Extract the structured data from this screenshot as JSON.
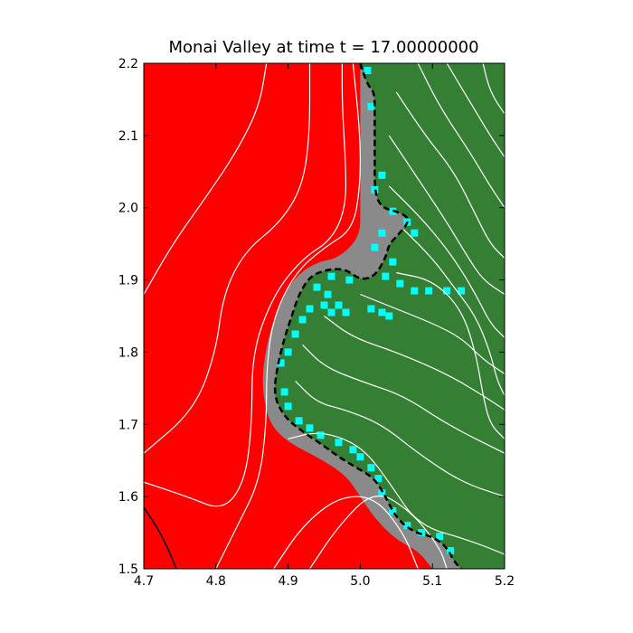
{
  "chart_data": {
    "type": "heatmap",
    "title": "Monai Valley at time t =     17.00000000",
    "xlabel": "",
    "ylabel": "",
    "xlim": [
      4.7,
      5.2
    ],
    "ylim": [
      1.5,
      2.2
    ],
    "x_ticks": [
      "4.7",
      "4.8",
      "4.9",
      "5.0",
      "5.1",
      "5.2"
    ],
    "y_ticks": [
      "1.5",
      "1.6",
      "1.7",
      "1.8",
      "1.9",
      "2.0",
      "2.1",
      "2.2"
    ],
    "grid": false,
    "colors": {
      "water": "#ff0000",
      "land": "#347f34",
      "shallow_land": "#4a8f2a",
      "wet_cells": "#00ffff",
      "shoreline_blend": "#8a8a8a",
      "contours": "#ffffff",
      "shoreline_line": "#000000"
    },
    "shoreline": [
      [
        5.0,
        2.2
      ],
      [
        5.01,
        2.17
      ],
      [
        5.02,
        2.16
      ],
      [
        5.02,
        2.12
      ],
      [
        5.02,
        2.07
      ],
      [
        5.02,
        2.02
      ],
      [
        5.03,
        2.0
      ],
      [
        5.05,
        1.995
      ],
      [
        5.07,
        1.985
      ],
      [
        5.055,
        1.965
      ],
      [
        5.04,
        1.95
      ],
      [
        5.035,
        1.93
      ],
      [
        5.02,
        1.905
      ],
      [
        5.0,
        1.9
      ],
      [
        4.98,
        1.915
      ],
      [
        4.955,
        1.915
      ],
      [
        4.93,
        1.905
      ],
      [
        4.915,
        1.88
      ],
      [
        4.905,
        1.85
      ],
      [
        4.895,
        1.82
      ],
      [
        4.885,
        1.78
      ],
      [
        4.88,
        1.74
      ],
      [
        4.895,
        1.71
      ],
      [
        4.92,
        1.69
      ],
      [
        4.95,
        1.67
      ],
      [
        4.97,
        1.655
      ],
      [
        4.995,
        1.64
      ],
      [
        5.02,
        1.625
      ],
      [
        5.035,
        1.6
      ],
      [
        5.05,
        1.57
      ],
      [
        5.075,
        1.55
      ],
      [
        5.1,
        1.545
      ],
      [
        5.12,
        1.53
      ],
      [
        5.13,
        1.51
      ],
      [
        5.14,
        1.5
      ]
    ],
    "land_boundary": [
      [
        5.0,
        2.2
      ],
      [
        5.0,
        2.15
      ],
      [
        5.0,
        2.07
      ],
      [
        5.0,
        2.0
      ],
      [
        5.0,
        1.96
      ],
      [
        4.97,
        1.93
      ],
      [
        4.94,
        1.925
      ],
      [
        4.91,
        1.905
      ],
      [
        4.89,
        1.87
      ],
      [
        4.875,
        1.83
      ],
      [
        4.865,
        1.78
      ],
      [
        4.865,
        1.74
      ],
      [
        4.875,
        1.7
      ],
      [
        4.9,
        1.675
      ],
      [
        4.94,
        1.655
      ],
      [
        4.98,
        1.63
      ],
      [
        5.0,
        1.6
      ],
      [
        5.02,
        1.57
      ],
      [
        5.05,
        1.54
      ],
      [
        5.08,
        1.525
      ],
      [
        5.1,
        1.5
      ]
    ],
    "wet_cells": [
      [
        5.01,
        2.19
      ],
      [
        5.015,
        2.14
      ],
      [
        5.03,
        2.045
      ],
      [
        5.02,
        2.025
      ],
      [
        5.045,
        1.995
      ],
      [
        5.065,
        1.98
      ],
      [
        5.075,
        1.965
      ],
      [
        5.03,
        1.965
      ],
      [
        5.02,
        1.945
      ],
      [
        5.045,
        1.925
      ],
      [
        5.035,
        1.905
      ],
      [
        5.055,
        1.895
      ],
      [
        5.075,
        1.885
      ],
      [
        5.095,
        1.885
      ],
      [
        5.12,
        1.885
      ],
      [
        5.14,
        1.885
      ],
      [
        4.985,
        1.9
      ],
      [
        4.96,
        1.905
      ],
      [
        4.94,
        1.89
      ],
      [
        4.955,
        1.88
      ],
      [
        4.95,
        1.865
      ],
      [
        4.97,
        1.865
      ],
      [
        4.98,
        1.855
      ],
      [
        4.96,
        1.855
      ],
      [
        4.93,
        1.86
      ],
      [
        4.92,
        1.845
      ],
      [
        4.91,
        1.825
      ],
      [
        4.9,
        1.8
      ],
      [
        4.89,
        1.785
      ],
      [
        4.895,
        1.745
      ],
      [
        4.9,
        1.725
      ],
      [
        4.915,
        1.705
      ],
      [
        4.93,
        1.695
      ],
      [
        4.945,
        1.685
      ],
      [
        4.97,
        1.675
      ],
      [
        4.99,
        1.665
      ],
      [
        5.0,
        1.655
      ],
      [
        5.015,
        1.64
      ],
      [
        5.025,
        1.625
      ],
      [
        5.03,
        1.605
      ],
      [
        5.045,
        1.58
      ],
      [
        5.065,
        1.56
      ],
      [
        5.085,
        1.55
      ],
      [
        5.11,
        1.545
      ],
      [
        5.125,
        1.525
      ],
      [
        5.03,
        1.855
      ],
      [
        5.04,
        1.85
      ],
      [
        5.015,
        1.86
      ]
    ],
    "contours": [
      [
        [
          4.7,
          1.88
        ],
        [
          4.74,
          1.95
        ],
        [
          4.79,
          2.02
        ],
        [
          4.83,
          2.08
        ],
        [
          4.86,
          2.14
        ],
        [
          4.87,
          2.2
        ]
      ],
      [
        [
          4.7,
          1.66
        ],
        [
          4.77,
          1.72
        ],
        [
          4.8,
          1.8
        ],
        [
          4.81,
          1.88
        ],
        [
          4.84,
          1.94
        ],
        [
          4.89,
          1.98
        ],
        [
          4.92,
          2.03
        ],
        [
          4.93,
          2.1
        ],
        [
          4.93,
          2.2
        ]
      ],
      [
        [
          4.7,
          1.62
        ],
        [
          4.76,
          1.6
        ],
        [
          4.81,
          1.58
        ],
        [
          4.84,
          1.62
        ],
        [
          4.85,
          1.7
        ],
        [
          4.85,
          1.8
        ],
        [
          4.88,
          1.88
        ],
        [
          4.92,
          1.93
        ],
        [
          4.96,
          1.955
        ],
        [
          4.98,
          2.0
        ],
        [
          4.98,
          2.06
        ],
        [
          4.975,
          2.14
        ],
        [
          4.975,
          2.2
        ]
      ],
      [
        [
          4.8,
          1.5
        ],
        [
          4.83,
          1.56
        ],
        [
          4.86,
          1.62
        ],
        [
          4.87,
          1.7
        ],
        [
          4.87,
          1.78
        ],
        [
          4.88,
          1.85
        ],
        [
          4.91,
          1.91
        ],
        [
          4.95,
          1.945
        ],
        [
          4.99,
          1.97
        ],
        [
          5.0,
          2.03
        ],
        [
          5.0,
          2.1
        ],
        [
          4.99,
          2.2
        ]
      ],
      [
        [
          4.88,
          1.5
        ],
        [
          4.92,
          1.56
        ],
        [
          4.97,
          1.6
        ],
        [
          5.02,
          1.6
        ],
        [
          5.06,
          1.55
        ],
        [
          5.08,
          1.5
        ]
      ],
      [
        [
          4.93,
          1.5
        ],
        [
          4.97,
          1.56
        ],
        [
          5.02,
          1.61
        ],
        [
          5.07,
          1.58
        ],
        [
          5.11,
          1.53
        ],
        [
          5.12,
          1.5
        ]
      ],
      [
        [
          4.9,
          1.68
        ],
        [
          4.94,
          1.69
        ],
        [
          4.98,
          1.68
        ],
        [
          5.01,
          1.66
        ],
        [
          5.04,
          1.62
        ],
        [
          5.08,
          1.56
        ],
        [
          5.15,
          1.54
        ],
        [
          5.2,
          1.52
        ]
      ],
      [
        [
          4.91,
          1.76
        ],
        [
          4.94,
          1.73
        ],
        [
          4.98,
          1.72
        ],
        [
          5.03,
          1.7
        ],
        [
          5.08,
          1.66
        ],
        [
          5.14,
          1.62
        ],
        [
          5.2,
          1.6
        ]
      ],
      [
        [
          4.92,
          1.81
        ],
        [
          4.95,
          1.78
        ],
        [
          5.0,
          1.76
        ],
        [
          5.06,
          1.74
        ],
        [
          5.12,
          1.7
        ],
        [
          5.2,
          1.66
        ]
      ],
      [
        [
          4.95,
          1.85
        ],
        [
          4.99,
          1.82
        ],
        [
          5.05,
          1.8
        ],
        [
          5.12,
          1.77
        ],
        [
          5.17,
          1.74
        ],
        [
          5.2,
          1.72
        ]
      ],
      [
        [
          5.0,
          1.88
        ],
        [
          5.05,
          1.86
        ],
        [
          5.1,
          1.84
        ],
        [
          5.14,
          1.82
        ],
        [
          5.17,
          1.79
        ],
        [
          5.2,
          1.77
        ]
      ],
      [
        [
          5.05,
          1.91
        ],
        [
          5.1,
          1.9
        ],
        [
          5.14,
          1.86
        ],
        [
          5.16,
          1.8
        ],
        [
          5.17,
          1.74
        ],
        [
          5.18,
          1.7
        ],
        [
          5.2,
          1.68
        ]
      ],
      [
        [
          5.06,
          1.97
        ],
        [
          5.1,
          1.93
        ],
        [
          5.13,
          1.89
        ],
        [
          5.16,
          1.85
        ],
        [
          5.18,
          1.8
        ],
        [
          5.19,
          1.76
        ],
        [
          5.2,
          1.74
        ]
      ],
      [
        [
          5.04,
          2.03
        ],
        [
          5.09,
          1.98
        ],
        [
          5.13,
          1.93
        ],
        [
          5.16,
          1.88
        ],
        [
          5.18,
          1.84
        ],
        [
          5.2,
          1.82
        ]
      ],
      [
        [
          5.04,
          2.1
        ],
        [
          5.08,
          2.04
        ],
        [
          5.12,
          1.98
        ],
        [
          5.15,
          1.93
        ],
        [
          5.17,
          1.9
        ],
        [
          5.2,
          1.88
        ]
      ],
      [
        [
          5.05,
          2.16
        ],
        [
          5.09,
          2.1
        ],
        [
          5.13,
          2.05
        ],
        [
          5.16,
          1.99
        ],
        [
          5.18,
          1.95
        ],
        [
          5.2,
          1.93
        ]
      ],
      [
        [
          5.08,
          2.2
        ],
        [
          5.11,
          2.14
        ],
        [
          5.15,
          2.08
        ],
        [
          5.18,
          2.03
        ],
        [
          5.2,
          2.0
        ]
      ],
      [
        [
          5.12,
          2.2
        ],
        [
          5.15,
          2.15
        ],
        [
          5.18,
          2.1
        ],
        [
          5.2,
          2.07
        ]
      ],
      [
        [
          5.17,
          2.2
        ],
        [
          5.18,
          2.16
        ],
        [
          5.2,
          2.13
        ]
      ]
    ],
    "dark_line": [
      [
        4.7,
        1.585
      ],
      [
        4.72,
        1.555
      ],
      [
        4.735,
        1.525
      ],
      [
        4.745,
        1.5
      ]
    ]
  }
}
